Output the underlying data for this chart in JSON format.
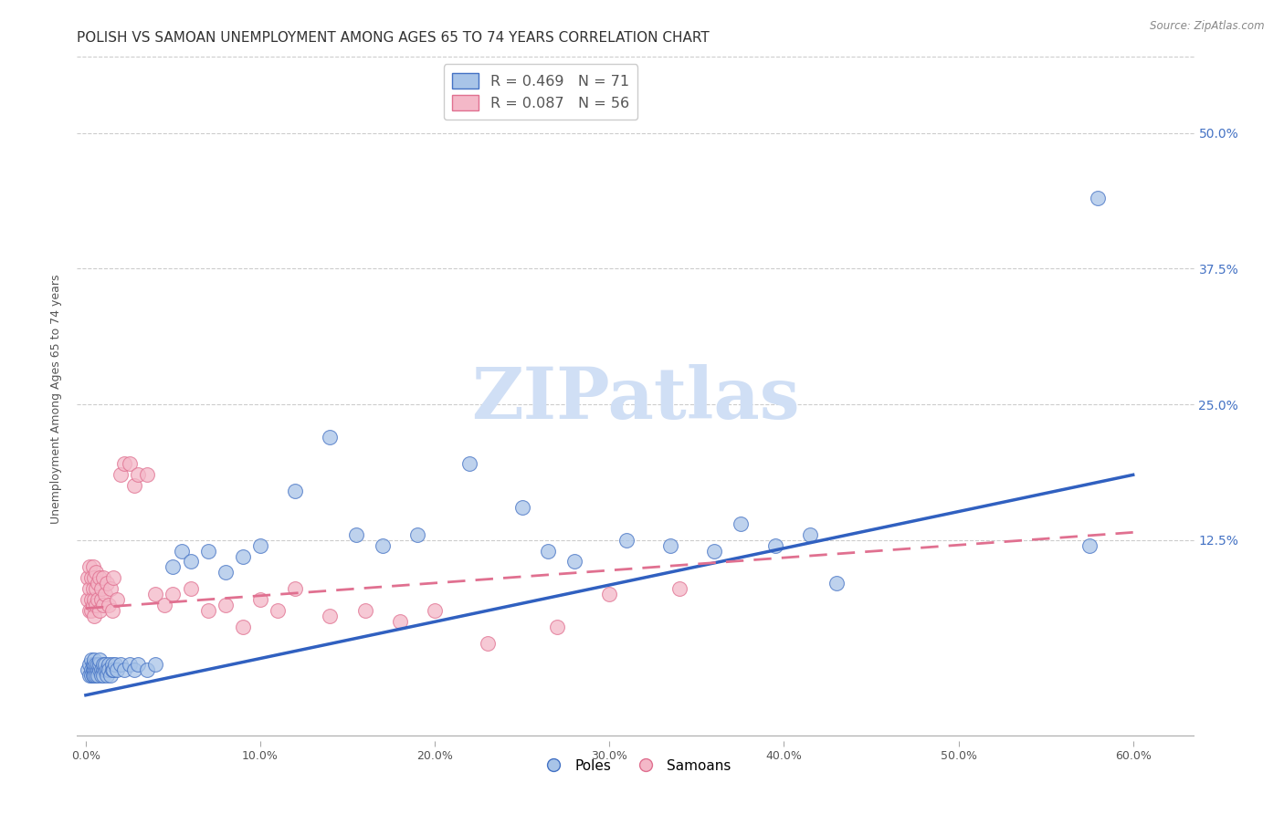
{
  "title": "POLISH VS SAMOAN UNEMPLOYMENT AMONG AGES 65 TO 74 YEARS CORRELATION CHART",
  "source": "Source: ZipAtlas.com",
  "ylabel": "Unemployment Among Ages 65 to 74 years",
  "xlim": [
    -0.005,
    0.635
  ],
  "ylim": [
    -0.06,
    0.57
  ],
  "xtick_pos": [
    0.0,
    0.1,
    0.2,
    0.3,
    0.4,
    0.5,
    0.6
  ],
  "xtick_labels": [
    "0.0%",
    "10.0%",
    "20.0%",
    "30.0%",
    "40.0%",
    "50.0%",
    "60.0%"
  ],
  "ytick_pos": [
    0.125,
    0.25,
    0.375,
    0.5
  ],
  "ytick_labels": [
    "12.5%",
    "25.0%",
    "37.5%",
    "50.0%"
  ],
  "poles_label": "Poles",
  "samoans_label": "Samoans",
  "blue_fill": "#a8c4e8",
  "blue_edge": "#4472c4",
  "pink_fill": "#f4b8c8",
  "pink_edge": "#e07090",
  "blue_line_color": "#3060c0",
  "pink_line_color": "#e07090",
  "watermark": "ZIPatlas",
  "watermark_color": "#d0dff5",
  "poles_R": 0.469,
  "poles_N": 71,
  "samoans_R": 0.087,
  "samoans_N": 56,
  "blue_trend": [
    0.0,
    -0.018,
    0.6,
    0.185
  ],
  "pink_trend": [
    0.0,
    0.062,
    0.6,
    0.132
  ],
  "background_color": "#ffffff",
  "grid_color": "#cccccc",
  "title_fontsize": 11,
  "axis_fontsize": 9,
  "tick_fontsize": 9,
  "right_tick_color": "#4472c4",
  "poles_x": [
    0.001,
    0.002,
    0.002,
    0.003,
    0.003,
    0.003,
    0.004,
    0.004,
    0.004,
    0.005,
    0.005,
    0.005,
    0.005,
    0.006,
    0.006,
    0.006,
    0.007,
    0.007,
    0.007,
    0.008,
    0.008,
    0.008,
    0.009,
    0.009,
    0.01,
    0.01,
    0.01,
    0.011,
    0.011,
    0.012,
    0.012,
    0.013,
    0.013,
    0.014,
    0.015,
    0.015,
    0.016,
    0.017,
    0.018,
    0.02,
    0.022,
    0.025,
    0.028,
    0.03,
    0.035,
    0.04,
    0.05,
    0.055,
    0.06,
    0.07,
    0.08,
    0.09,
    0.1,
    0.12,
    0.14,
    0.155,
    0.17,
    0.19,
    0.22,
    0.25,
    0.265,
    0.28,
    0.31,
    0.335,
    0.36,
    0.375,
    0.395,
    0.415,
    0.43,
    0.575,
    0.58
  ],
  "poles_y": [
    0.005,
    0.0,
    0.01,
    0.005,
    0.0,
    0.015,
    0.005,
    0.01,
    0.0,
    0.005,
    0.01,
    0.0,
    0.015,
    0.005,
    0.01,
    0.0,
    0.005,
    0.01,
    0.0,
    0.005,
    0.01,
    0.015,
    0.005,
    0.0,
    0.005,
    0.01,
    0.0,
    0.005,
    0.01,
    0.005,
    0.0,
    0.01,
    0.005,
    0.0,
    0.005,
    0.01,
    0.005,
    0.01,
    0.005,
    0.01,
    0.005,
    0.01,
    0.005,
    0.01,
    0.005,
    0.01,
    0.1,
    0.115,
    0.105,
    0.115,
    0.095,
    0.11,
    0.12,
    0.17,
    0.22,
    0.13,
    0.12,
    0.13,
    0.195,
    0.155,
    0.115,
    0.105,
    0.125,
    0.12,
    0.115,
    0.14,
    0.12,
    0.13,
    0.085,
    0.12,
    0.44
  ],
  "samoans_x": [
    0.001,
    0.001,
    0.002,
    0.002,
    0.002,
    0.003,
    0.003,
    0.003,
    0.004,
    0.004,
    0.004,
    0.005,
    0.005,
    0.005,
    0.006,
    0.006,
    0.006,
    0.007,
    0.007,
    0.008,
    0.008,
    0.009,
    0.009,
    0.01,
    0.01,
    0.011,
    0.012,
    0.013,
    0.014,
    0.015,
    0.016,
    0.018,
    0.02,
    0.022,
    0.025,
    0.028,
    0.03,
    0.035,
    0.04,
    0.045,
    0.05,
    0.06,
    0.07,
    0.08,
    0.09,
    0.1,
    0.11,
    0.12,
    0.14,
    0.16,
    0.18,
    0.2,
    0.23,
    0.27,
    0.3,
    0.34
  ],
  "samoans_y": [
    0.07,
    0.09,
    0.06,
    0.08,
    0.1,
    0.07,
    0.09,
    0.06,
    0.08,
    0.065,
    0.1,
    0.07,
    0.09,
    0.055,
    0.08,
    0.065,
    0.095,
    0.07,
    0.085,
    0.06,
    0.09,
    0.07,
    0.08,
    0.065,
    0.09,
    0.075,
    0.085,
    0.065,
    0.08,
    0.06,
    0.09,
    0.07,
    0.185,
    0.195,
    0.195,
    0.175,
    0.185,
    0.185,
    0.075,
    0.065,
    0.075,
    0.08,
    0.06,
    0.065,
    0.045,
    0.07,
    0.06,
    0.08,
    0.055,
    0.06,
    0.05,
    0.06,
    0.03,
    0.045,
    0.075,
    0.08
  ]
}
